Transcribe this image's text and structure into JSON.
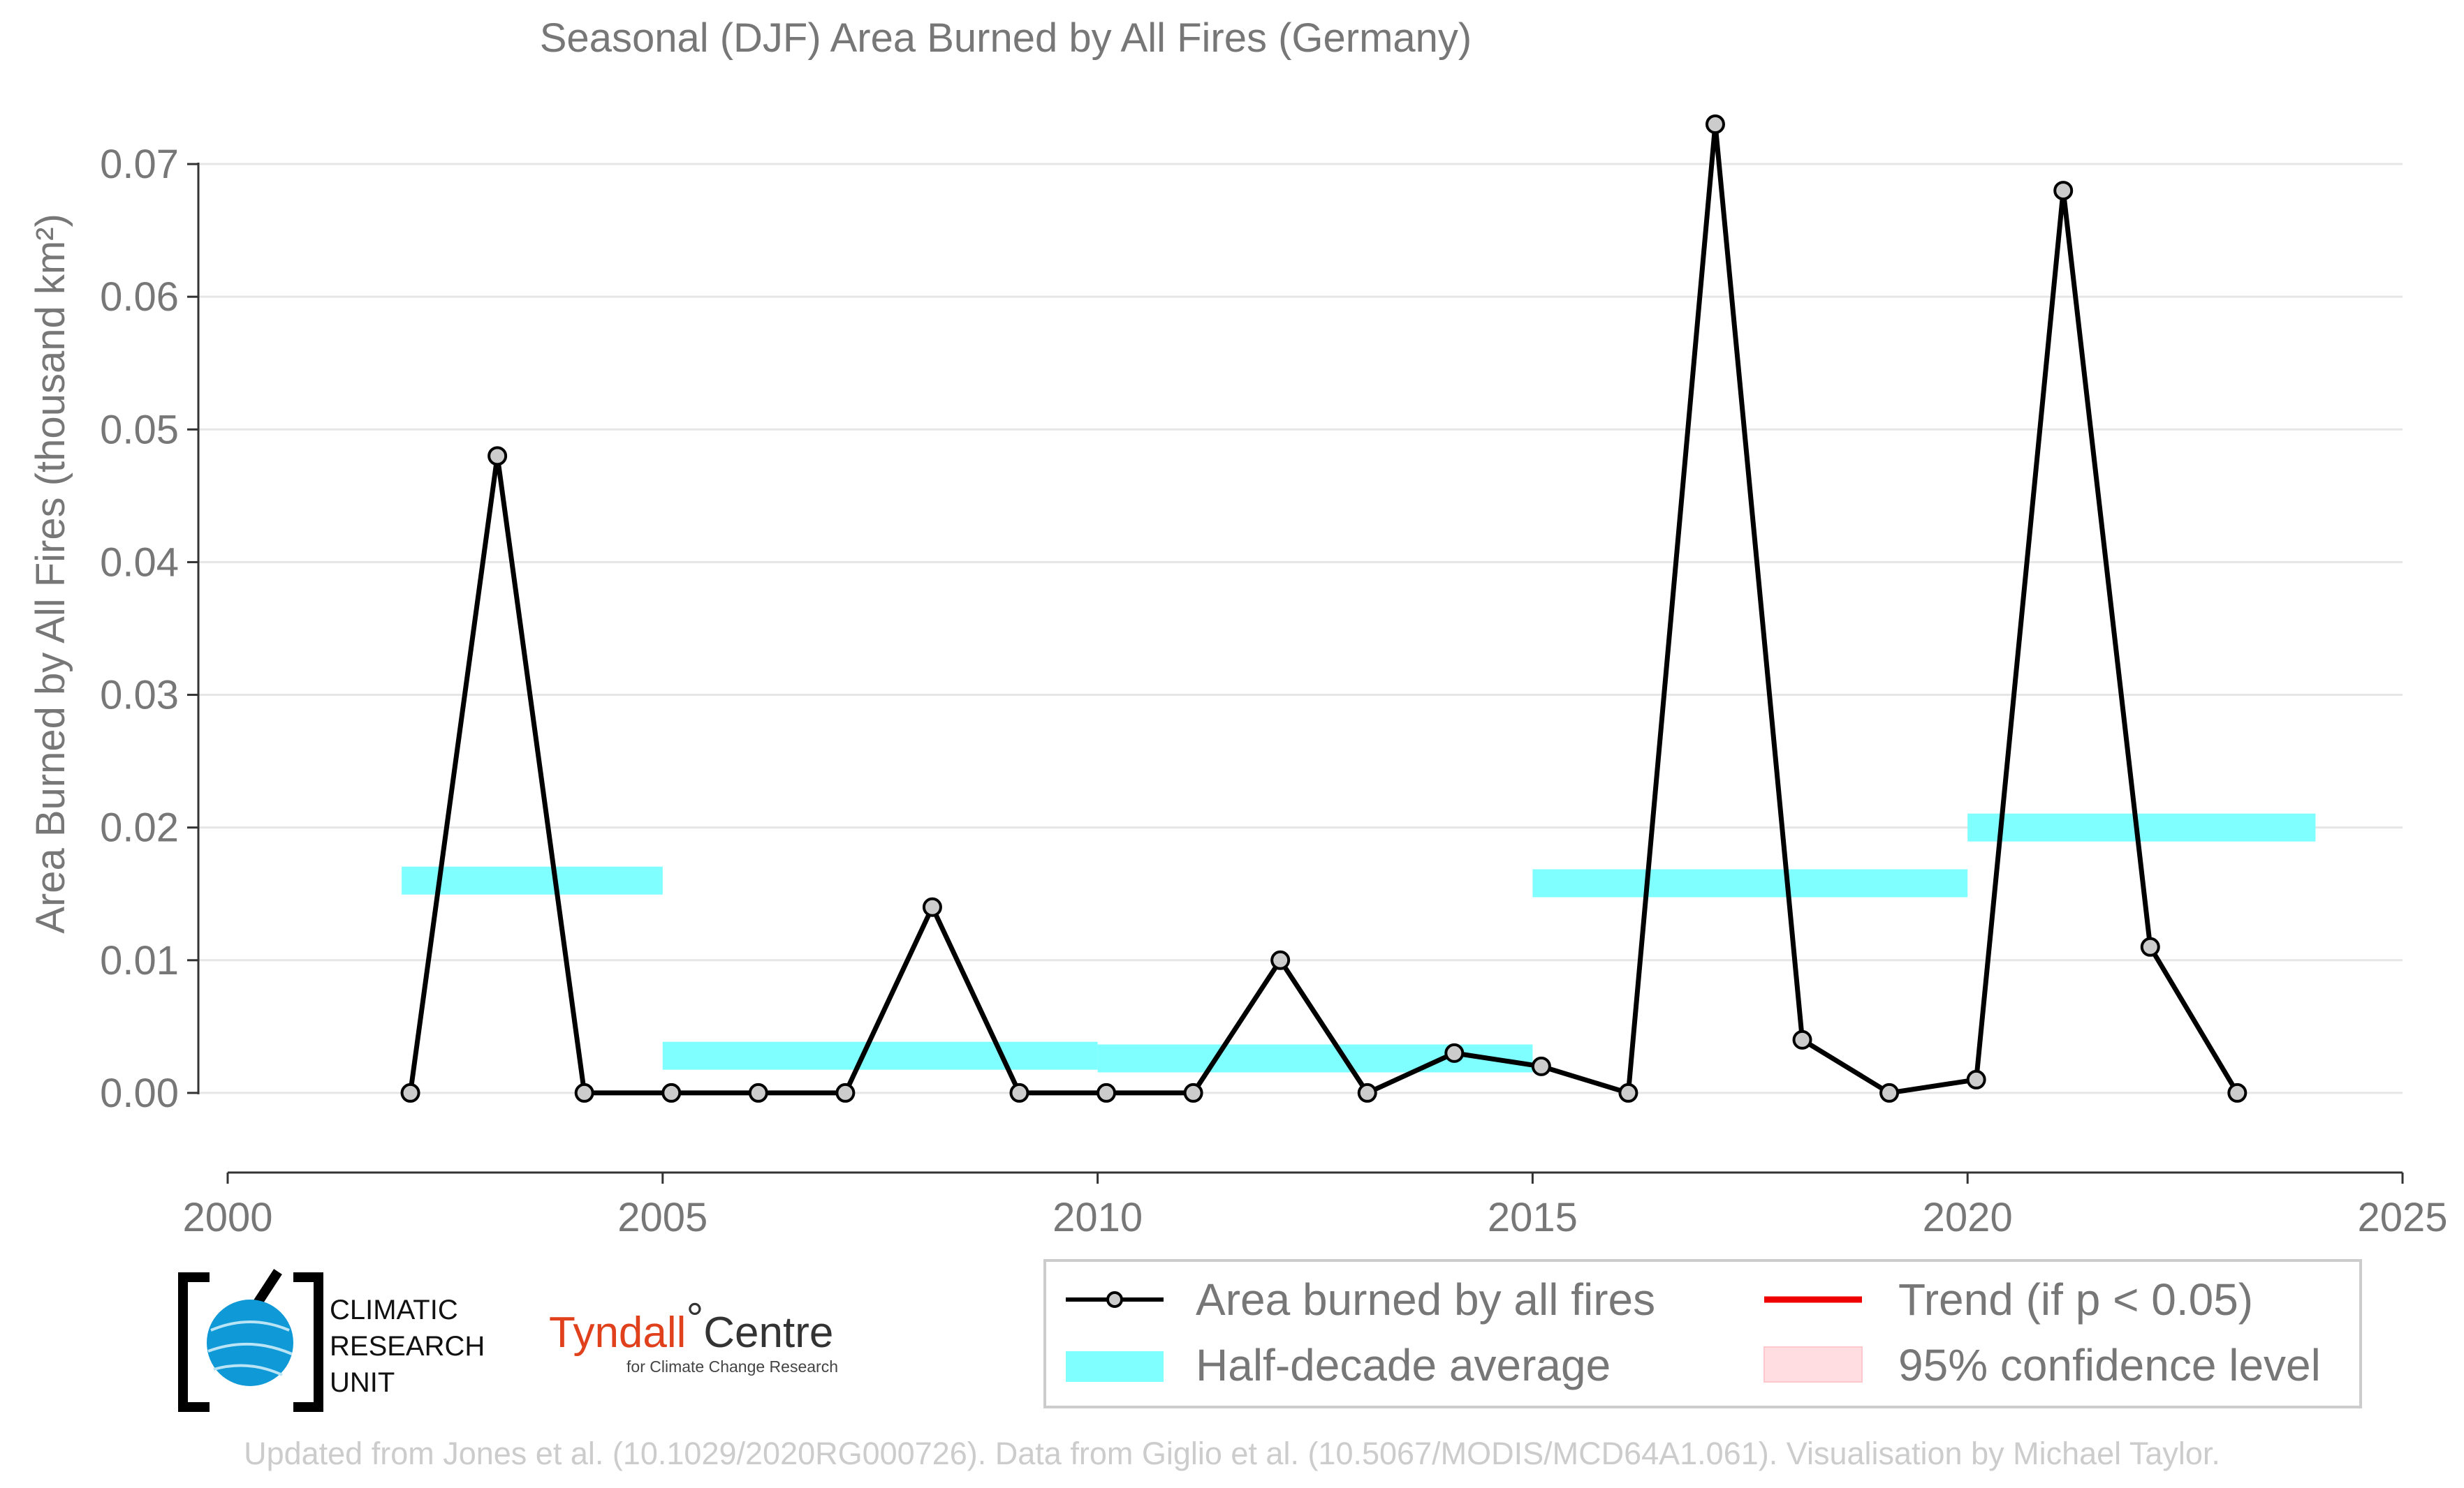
{
  "chart_data": {
    "type": "line",
    "title": "Seasonal (DJF) Area Burned by All Fires (Germany)",
    "xlabel": "",
    "ylabel": "Area Burned by All Fires (thousand km²)",
    "xlim": [
      2000,
      2025
    ],
    "ylim": [
      -0.006,
      0.075
    ],
    "x_ticks": [
      2000,
      2005,
      2010,
      2015,
      2020,
      2025
    ],
    "y_ticks": [
      0.0,
      0.01,
      0.02,
      0.03,
      0.04,
      0.05,
      0.06,
      0.07
    ],
    "y_tick_labels": [
      "0.00",
      "0.01",
      "0.02",
      "0.03",
      "0.04",
      "0.05",
      "0.06",
      "0.07"
    ],
    "grid": "horizontal",
    "series": [
      {
        "name": "Area burned by all fires",
        "color": "#000000",
        "marker_fill": "#cccccc",
        "x": [
          2002.1,
          2003.1,
          2004.1,
          2005.1,
          2006.1,
          2007.1,
          2008.1,
          2009.1,
          2010.1,
          2011.1,
          2012.1,
          2013.1,
          2014.1,
          2015.1,
          2016.1,
          2017.1,
          2018.1,
          2019.1,
          2020.1,
          2021.1,
          2022.1,
          2023.1
        ],
        "y": [
          0.0,
          0.048,
          0.0,
          0.0,
          0.0,
          0.0,
          0.014,
          0.0,
          0.0,
          0.0,
          0.01,
          0.0,
          0.003,
          0.002,
          0.0,
          0.073,
          0.004,
          0.0,
          0.001,
          0.068,
          0.011,
          0.0
        ]
      }
    ],
    "half_decade_averages": {
      "name": "Half-decade average",
      "color": "#7fffff",
      "segments": [
        {
          "x0": 2002.0,
          "x1": 2005.0,
          "y": 0.016
        },
        {
          "x0": 2005.0,
          "x1": 2010.0,
          "y": 0.0028
        },
        {
          "x0": 2010.0,
          "x1": 2015.0,
          "y": 0.0026
        },
        {
          "x0": 2015.0,
          "x1": 2020.0,
          "y": 0.0158
        },
        {
          "x0": 2020.0,
          "x1": 2024.0,
          "y": 0.02
        }
      ]
    },
    "legend": {
      "placement": "bottom-right",
      "entries": [
        {
          "label": "Area burned by all fires",
          "kind": "line-marker",
          "color": "#000000"
        },
        {
          "label": "Trend (if p < 0.05)",
          "kind": "line",
          "color": "#ee0000"
        },
        {
          "label": "Half-decade average",
          "kind": "band",
          "color": "#7fffff"
        },
        {
          "label": "95% confidence level",
          "kind": "patch",
          "color": "#ffdde0"
        }
      ]
    }
  },
  "logos": {
    "cru": {
      "line1": "CLIMATIC",
      "line2": "RESEARCH",
      "line3": "UNIT",
      "icon": "globe-icon",
      "color": "#0f99d6"
    },
    "tyndall": {
      "part1": "Tyndall",
      "degree": "°",
      "part2": "Centre",
      "subtitle": "for Climate Change Research"
    }
  },
  "footer": "Updated from Jones et al. (10.1029/2020RG000726). Data from Giglio et al. (10.5067/MODIS/MCD64A1.061). Visualisation by Michael Taylor."
}
